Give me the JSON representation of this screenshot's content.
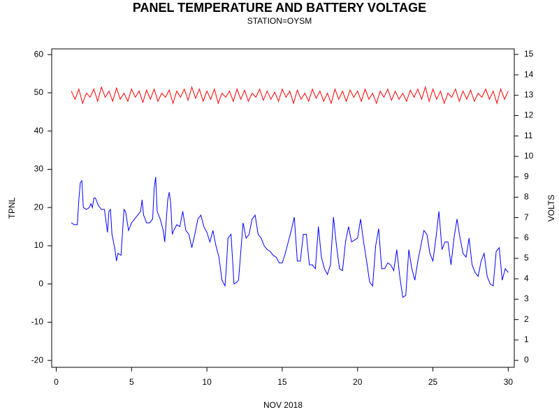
{
  "chart_data": {
    "type": "line",
    "title": "PANEL TEMPERATURE AND BATTERY VOLTAGE",
    "subtitle": "STATION=OYSM",
    "x_label": "NOV 2018",
    "y_label": "TPNL",
    "y2_label": "VOLTS",
    "xlim": [
      -0.3,
      30.4
    ],
    "xticks": [
      0,
      5,
      10,
      15,
      20,
      25,
      30
    ],
    "ylim": [
      -21.8,
      61.5
    ],
    "yticks": [
      -20,
      -10,
      0,
      10,
      20,
      30,
      40,
      50,
      60
    ],
    "y2lim": [
      -0.34,
      15.27
    ],
    "y2ticks": [
      0,
      1,
      2,
      3,
      4,
      5,
      6,
      7,
      8,
      9,
      10,
      11,
      12,
      13,
      14,
      15
    ],
    "series": [
      {
        "color": "#0000ff",
        "x": [
          1.0,
          1.2,
          1.4,
          1.5,
          1.6,
          1.7,
          1.8,
          2.0,
          2.2,
          2.3,
          2.4,
          2.5,
          2.6,
          2.8,
          3.0,
          3.2,
          3.4,
          3.5,
          3.6,
          3.7,
          3.9,
          4.0,
          4.1,
          4.3,
          4.5,
          4.6,
          4.8,
          5.0,
          5.2,
          5.4,
          5.6,
          5.7,
          5.8,
          6.0,
          6.2,
          6.4,
          6.5,
          6.6,
          6.7,
          6.9,
          7.1,
          7.2,
          7.4,
          7.5,
          7.6,
          7.7,
          7.8,
          8.0,
          8.2,
          8.4,
          8.6,
          8.8,
          9.0,
          9.2,
          9.4,
          9.6,
          9.8,
          10.0,
          10.2,
          10.4,
          10.6,
          10.8,
          11.0,
          11.2,
          11.3,
          11.4,
          11.6,
          11.8,
          12.0,
          12.1,
          12.4,
          12.6,
          12.8,
          13.0,
          13.2,
          13.4,
          13.6,
          13.8,
          14.0,
          14.2,
          14.4,
          14.6,
          14.8,
          15.0,
          15.2,
          15.4,
          15.6,
          15.8,
          16.0,
          16.2,
          16.4,
          16.6,
          16.8,
          17.0,
          17.2,
          17.4,
          17.6,
          17.8,
          18.0,
          18.2,
          18.4,
          18.6,
          18.8,
          19.0,
          19.2,
          19.4,
          19.6,
          19.8,
          20.0,
          20.2,
          20.4,
          20.6,
          20.8,
          21.0,
          21.2,
          21.4,
          21.6,
          21.8,
          22.0,
          22.2,
          22.4,
          22.6,
          22.8,
          23.0,
          23.2,
          23.4,
          23.6,
          23.8,
          24.0,
          24.2,
          24.4,
          24.6,
          24.8,
          25.0,
          25.2,
          25.4,
          25.6,
          25.8,
          26.0,
          26.2,
          26.4,
          26.6,
          26.8,
          27.0,
          27.2,
          27.4,
          27.6,
          27.8,
          28.0,
          28.2,
          28.4,
          28.6,
          28.8,
          29.0,
          29.2,
          29.4,
          29.6,
          29.8,
          30.0
        ],
        "values": [
          16,
          15.5,
          15.5,
          22,
          26.5,
          27,
          20,
          19.5,
          20,
          21,
          20,
          22.5,
          22.5,
          20.5,
          19.5,
          19.5,
          13.5,
          19,
          19.5,
          13,
          9,
          6,
          8,
          7.5,
          19.5,
          19,
          14,
          16,
          17,
          18,
          19,
          22,
          18,
          16,
          16,
          17,
          25,
          28,
          19,
          17,
          14,
          11,
          22,
          24,
          21,
          13,
          14,
          15.5,
          15,
          19,
          14,
          13,
          9.5,
          13,
          17,
          18,
          15,
          13.5,
          11,
          14,
          10,
          7,
          1,
          -0.5,
          5,
          12,
          13,
          0,
          0.5,
          1,
          16,
          12,
          13,
          17,
          18,
          13,
          12,
          10,
          9,
          8.5,
          7.5,
          7,
          5.5,
          5.5,
          8,
          11,
          14,
          17.5,
          6,
          6,
          13,
          13,
          5,
          5,
          4,
          15,
          7,
          4,
          2.5,
          5,
          17.5,
          10,
          4,
          3.5,
          11,
          15,
          11,
          11.5,
          12,
          17,
          11,
          6,
          0.5,
          -0.5,
          10,
          14.5,
          4,
          4,
          5.5,
          5,
          3.5,
          9,
          2,
          -3.5,
          -3,
          9,
          4,
          1,
          6,
          10,
          14,
          13,
          8,
          6,
          12,
          19,
          9,
          11,
          11,
          5,
          12,
          17,
          12,
          8,
          7,
          12,
          5,
          3,
          2,
          6,
          8,
          2,
          0,
          -0.5,
          8.5,
          9.5,
          1,
          4,
          3
        ]
      },
      {
        "color": "#ff0000",
        "axis": "y2",
        "x": [
          1.0,
          1.25,
          1.5,
          1.75,
          2.0,
          2.25,
          2.5,
          2.75,
          3.0,
          3.25,
          3.5,
          3.75,
          4.0,
          4.25,
          4.5,
          4.75,
          5.0,
          5.25,
          5.5,
          5.75,
          6.0,
          6.25,
          6.5,
          6.75,
          7.0,
          7.25,
          7.5,
          7.75,
          8.0,
          8.25,
          8.5,
          8.75,
          9.0,
          9.25,
          9.5,
          9.75,
          10.0,
          10.25,
          10.5,
          10.75,
          11.0,
          11.25,
          11.5,
          11.75,
          12.0,
          12.25,
          12.5,
          12.75,
          13.0,
          13.25,
          13.5,
          13.75,
          14.0,
          14.25,
          14.5,
          14.75,
          15.0,
          15.25,
          15.5,
          15.75,
          16.0,
          16.25,
          16.5,
          16.75,
          17.0,
          17.25,
          17.5,
          17.75,
          18.0,
          18.25,
          18.5,
          18.75,
          19.0,
          19.25,
          19.5,
          19.75,
          20.0,
          20.25,
          20.5,
          20.75,
          21.0,
          21.25,
          21.5,
          21.75,
          22.0,
          22.25,
          22.5,
          22.75,
          23.0,
          23.25,
          23.5,
          23.75,
          24.0,
          24.25,
          24.5,
          24.75,
          25.0,
          25.25,
          25.5,
          25.75,
          26.0,
          26.25,
          26.5,
          26.75,
          27.0,
          27.25,
          27.5,
          27.75,
          28.0,
          28.25,
          28.5,
          28.75,
          29.0,
          29.25,
          29.5,
          29.75,
          30.0
        ],
        "values": [
          13.2,
          12.8,
          13.3,
          12.6,
          13.1,
          12.9,
          13.3,
          12.7,
          13.4,
          12.9,
          13.2,
          12.7,
          13.35,
          12.8,
          13.1,
          12.7,
          13.3,
          12.9,
          13.2,
          12.65,
          13.25,
          12.8,
          13.3,
          12.7,
          13.1,
          12.9,
          13.25,
          12.6,
          13.2,
          12.9,
          13.3,
          12.75,
          13.4,
          12.85,
          13.3,
          12.7,
          13.2,
          12.8,
          13.3,
          12.6,
          13.1,
          12.9,
          13.2,
          12.7,
          13.3,
          12.8,
          13.25,
          12.7,
          13.1,
          12.9,
          13.3,
          12.75,
          13.2,
          12.8,
          13.15,
          12.7,
          13.3,
          12.9,
          13.2,
          12.6,
          13.25,
          12.8,
          13.1,
          12.7,
          13.3,
          12.85,
          13.2,
          12.7,
          13.1,
          12.6,
          13.3,
          12.8,
          13.2,
          12.7,
          13.25,
          12.9,
          13.2,
          12.7,
          13.3,
          12.8,
          13.1,
          12.6,
          13.2,
          12.9,
          13.3,
          12.75,
          13.2,
          12.8,
          13.1,
          12.7,
          13.25,
          12.9,
          13.3,
          12.8,
          13.4,
          12.7,
          13.3,
          12.8,
          13.2,
          12.6,
          13.1,
          12.9,
          13.3,
          12.7,
          13.2,
          12.8,
          13.25,
          12.7,
          13.1,
          12.9,
          13.3,
          12.8,
          13.2,
          12.6,
          13.3,
          12.8,
          13.2
        ]
      }
    ]
  }
}
